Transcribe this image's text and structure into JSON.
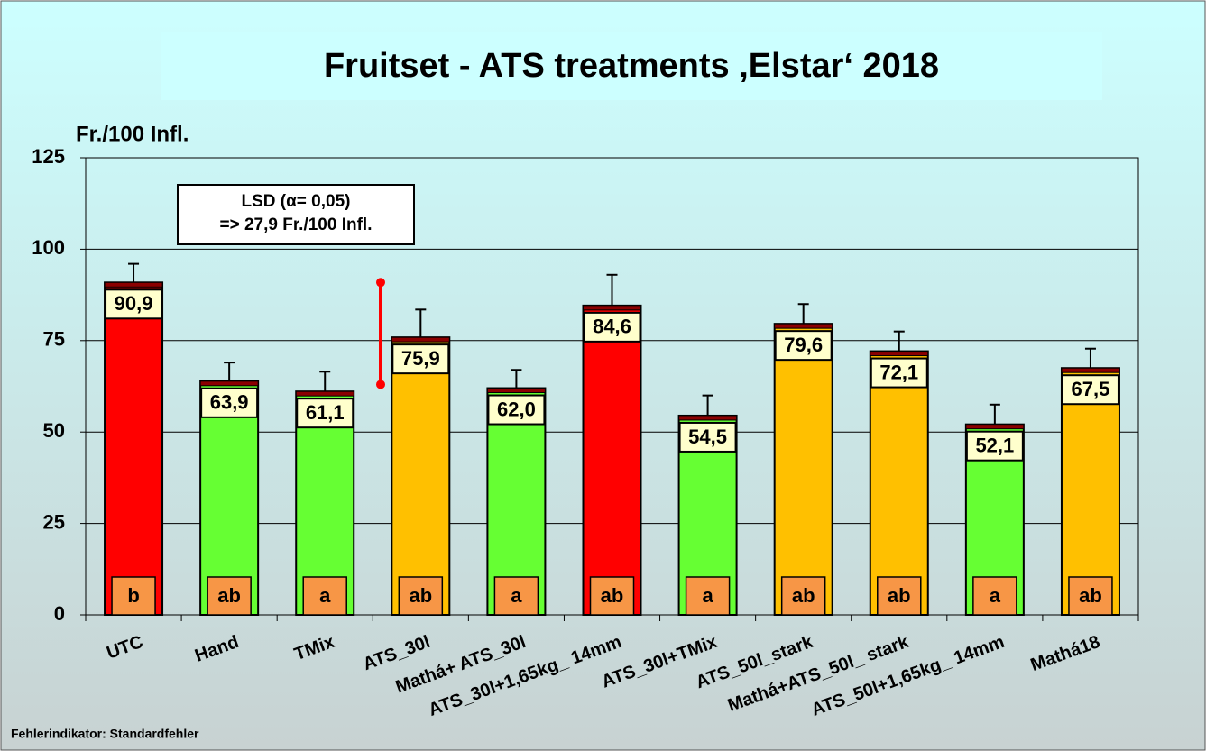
{
  "chart_data": {
    "type": "bar",
    "title": "Fruitset  - ATS treatments ‚Elstar‘ 2018",
    "y_label": "Fr./100 Infl.",
    "footnote": "Fehlerindikator: Standardfehler",
    "categories": [
      "UTC",
      "Hand",
      "TMix",
      "ATS_30l",
      "Mathá+ ATS_30l",
      "ATS_30l+1,65kg_ 14mm",
      "ATS_30l+TMix",
      "ATS_50l_stark",
      "Mathá+ATS_50l_ stark",
      "ATS_50l+1,65kg_ 14mm",
      "Mathá18"
    ],
    "values": [
      90.9,
      63.9,
      61.1,
      75.9,
      62.0,
      84.6,
      54.5,
      79.6,
      72.1,
      52.1,
      67.5
    ],
    "value_labels": [
      "90,9",
      "63,9",
      "61,1",
      "75,9",
      "62,0",
      "84,6",
      "54,5",
      "79,6",
      "72,1",
      "52,1",
      "67,5"
    ],
    "errors": [
      5.1,
      5.1,
      5.4,
      7.6,
      5.0,
      8.4,
      5.5,
      5.4,
      5.4,
      5.4,
      5.3
    ],
    "colors": [
      "#ff0000",
      "#66ff33",
      "#66ff33",
      "#ffc000",
      "#66ff33",
      "#ff0000",
      "#66ff33",
      "#ffc000",
      "#ffc000",
      "#66ff33",
      "#ffc000"
    ],
    "letters": [
      "b",
      "ab",
      "a",
      "ab",
      "a",
      "ab",
      "a",
      "ab",
      "ab",
      "a",
      "ab"
    ],
    "lsd": {
      "lines": [
        "LSD (α= 0,05)",
        "=> 27,9 Fr./100 Infl."
      ],
      "base": 63,
      "value": 27.9
    },
    "ylim": [
      0,
      125
    ],
    "yticks": [
      0,
      25,
      50,
      75,
      100,
      125
    ],
    "grid": true
  }
}
